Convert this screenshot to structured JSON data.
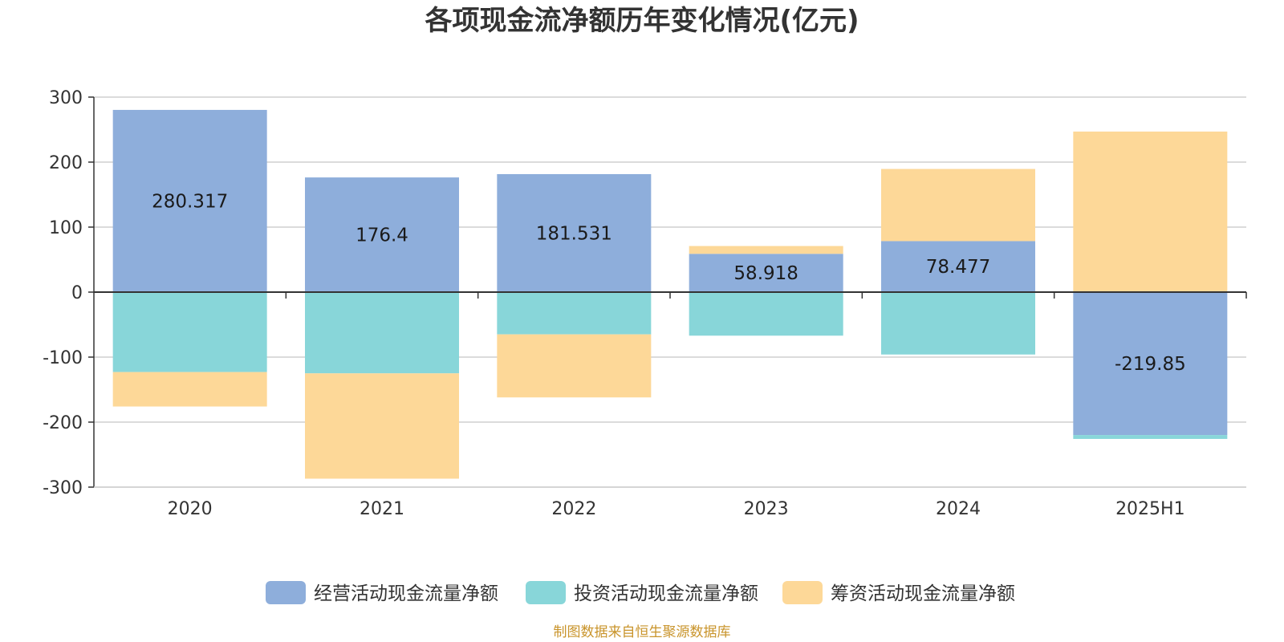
{
  "chart_data": {
    "type": "bar",
    "stacked": true,
    "title": "各项现金流净额历年变化情况(亿元)",
    "categories": [
      "2020",
      "2021",
      "2022",
      "2023",
      "2024",
      "2025H1"
    ],
    "series": [
      {
        "name": "经营活动现金流量净额",
        "color": "#8eaedb",
        "values": [
          280.317,
          176.4,
          181.531,
          58.918,
          78.477,
          -219.85
        ]
      },
      {
        "name": "投资活动现金流量净额",
        "color": "#88d6d9",
        "values": [
          -123,
          -125,
          -65,
          -67,
          -96,
          -6
        ]
      },
      {
        "name": "筹资活动现金流量净额",
        "color": "#fdd898",
        "values": [
          -53,
          -162,
          -97,
          12,
          111,
          247
        ]
      }
    ],
    "data_labels": [
      "280.317",
      "176.4",
      "181.531",
      "58.918",
      "78.477",
      "-219.85"
    ],
    "yticks": [
      "300",
      "200",
      "100",
      "0",
      "-100",
      "-200",
      "-300"
    ],
    "ylim": [
      -300,
      300
    ],
    "grid": true,
    "legend_position": "bottom"
  },
  "footer": {
    "source": "制图数据来自恒生聚源数据库"
  }
}
